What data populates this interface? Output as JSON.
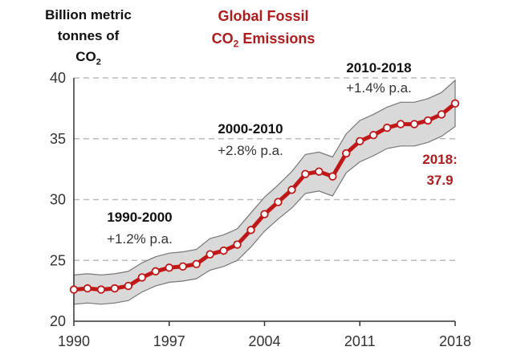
{
  "chart_data": {
    "type": "line",
    "title": {
      "line1": "Global Fossil",
      "line2_prefix": "CO",
      "line2_sub": "2",
      "line2_suffix": " Emissions"
    },
    "ylabel": {
      "line1": "Billion metric",
      "line2": "tonnes of",
      "line3_prefix": "CO",
      "line3_sub": "2"
    },
    "ylim": [
      20,
      40
    ],
    "xlim": [
      1990,
      2018
    ],
    "y_ticks": [
      20,
      25,
      30,
      35,
      40
    ],
    "x_ticks": [
      1990,
      1997,
      2004,
      2011,
      2018
    ],
    "grid": "horizontal dashed",
    "series": [
      {
        "x": [
          1990,
          1991,
          1992,
          1993,
          1994,
          1995,
          1996,
          1997,
          1998,
          1999,
          2000,
          2001,
          2002,
          2003,
          2004,
          2005,
          2006,
          2007,
          2008,
          2009,
          2010,
          2011,
          2012,
          2013,
          2014,
          2015,
          2016,
          2017,
          2018
        ],
        "values": [
          22.6,
          22.7,
          22.6,
          22.7,
          22.9,
          23.6,
          24.1,
          24.4,
          24.5,
          24.7,
          25.5,
          25.8,
          26.3,
          27.5,
          28.8,
          29.8,
          30.8,
          32.1,
          32.3,
          31.9,
          33.8,
          34.8,
          35.3,
          35.9,
          36.2,
          36.2,
          36.5,
          37.0,
          37.9
        ],
        "upper": [
          23.8,
          23.9,
          23.8,
          23.9,
          24.1,
          24.8,
          25.3,
          25.6,
          25.7,
          25.9,
          26.8,
          27.1,
          27.6,
          28.9,
          30.2,
          31.2,
          32.3,
          33.7,
          33.9,
          33.5,
          35.4,
          36.5,
          37.0,
          37.6,
          38.0,
          38.0,
          38.3,
          38.8,
          39.8
        ],
        "lower": [
          21.4,
          21.5,
          21.4,
          21.5,
          21.7,
          22.4,
          22.9,
          23.2,
          23.3,
          23.5,
          24.2,
          24.5,
          25.0,
          26.1,
          27.4,
          28.4,
          29.3,
          30.5,
          30.7,
          30.3,
          32.2,
          33.1,
          33.6,
          34.2,
          34.4,
          34.4,
          34.7,
          35.2,
          36.0
        ]
      }
    ],
    "annotations": [
      {
        "period": "1990-2000",
        "rate": "+1.2% p.a."
      },
      {
        "period": "2000-2010",
        "rate": "+2.8% p.a."
      },
      {
        "period": "2010-2018",
        "rate": "+1.4% p.a."
      }
    ],
    "final_label": {
      "line1": "2018:",
      "line2": "37.9"
    },
    "colors": {
      "line": "#c01818",
      "band_fill": "#d9d9d9",
      "band_stroke": "#777777",
      "grid": "#bbbbbb",
      "marker_fill": "#ffffff"
    }
  }
}
